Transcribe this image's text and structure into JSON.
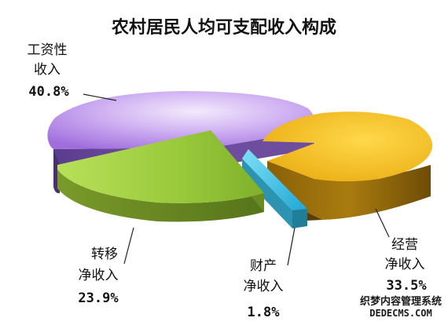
{
  "chart_data": {
    "type": "pie",
    "title": "农村居民人均可支配收入构成",
    "slices": [
      {
        "label_lines": [
          "工资性",
          "收入"
        ],
        "value": 40.8,
        "value_text": "40.8%",
        "color": "#b07ae6"
      },
      {
        "label_lines": [
          "经营",
          "净收入"
        ],
        "value": 33.5,
        "value_text": "33.5%",
        "color": "#f2c012"
      },
      {
        "label_lines": [
          "财产",
          "净收入"
        ],
        "value": 1.8,
        "value_text": "1.8%",
        "color": "#39c6ec"
      },
      {
        "label_lines": [
          "转移",
          "净收入"
        ],
        "value": 23.9,
        "value_text": "23.9%",
        "color": "#8fc93a"
      }
    ]
  },
  "watermark": {
    "line1": "织梦内容管理系统",
    "line2": "DEDECMS.COM"
  }
}
